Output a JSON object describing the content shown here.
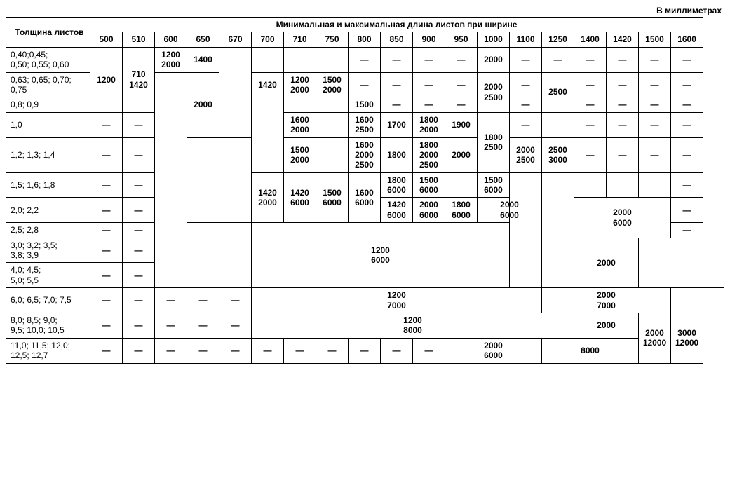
{
  "unit_label": "В миллиметрах",
  "header": {
    "row_title": "Толщина листов",
    "spanning_title": "Минимальная и максимальная длина листов при ширине",
    "columns": [
      "500",
      "510",
      "600",
      "650",
      "670",
      "700",
      "710",
      "750",
      "800",
      "850",
      "900",
      "950",
      "1000",
      "1100",
      "1250",
      "1400",
      "1420",
      "1500",
      "1600"
    ]
  },
  "dash": "—",
  "row_labels": {
    "r1": "0,40;0,45;\n0,50; 0,55; 0,60",
    "r2": "0,63; 0,65; 0,70;\n0,75",
    "r3": "0,8; 0,9",
    "r4": "1,0",
    "r5": "1,2; 1,3; 1,4",
    "r6": "1,5; 1,6; 1,8",
    "r7": "2,0; 2,2",
    "r8": "2,5; 2,8",
    "r9": "3,0; 3,2; 3,5;\n3,8; 3,9",
    "r10": "4,0; 4,5;\n5,0; 5,5",
    "r11": "6,0; 6,5; 7,0; 7,5",
    "r12": "8,0; 8,5; 9,0;\n9,5; 10,0; 10,5",
    "r13": "11,0; 11,5; 12,0;\n12,5; 12,7"
  },
  "cells": {
    "c500_r1to3": "1200",
    "c510_r1to3": "710\n1420",
    "c600_r1": "1200\n2000",
    "c650_r1": "1400",
    "c650_r2to4": "2000",
    "c700_r2": "1420",
    "c710_r2": "1200\n2000",
    "c750_r2": "1500\n2000",
    "c800_r3": "1500",
    "c1000_r1": "2000",
    "c1000_r2to3": "2000\n2500",
    "c1250_r2to3": "2500",
    "c710_r4": "1600\n2000",
    "c800_r4": "1600\n2500",
    "c850_r4": "1700",
    "c900_r4": "1800\n2000",
    "c950_r4": "1900",
    "c1000_r4to5": "1800\n2500",
    "c710_r5": "1500\n2000",
    "c800_r5": "1600\n2000\n2500",
    "c850_r5": "1800",
    "c900_r5": "1800\n2000\n2500",
    "c950_r5": "2000",
    "c1100_r5": "2000\n2500",
    "c1250_r5": "2500\n3000",
    "c650_r6to7": "1420\n2000",
    "c700_r7": "1420\n6000",
    "c710_r6to7": "1420\n6000",
    "c750_r6to7": "1500\n6000",
    "c800_r6to7": "1600\n6000",
    "c850_r6": "1800\n6000",
    "c900_r6": "1500\n6000",
    "c1000_r6": "1500\n6000",
    "c850_r7": "2000\n6000",
    "c900_r7": "1800\n6000",
    "c1000_r7": "2000\n6000",
    "c1400_r7to8": "2000\n6000",
    "c600_r9to10": "2000",
    "c800_r9to10": "1200\n6000",
    "c1000_r11": "1200\n7000",
    "c1400_r11": "2000\n7000",
    "c800_r12": "1200\n8000",
    "c1400_r12": "2000",
    "c1500_r12to13": "2000\n12000",
    "c1600_r12to13": "3000\n12000",
    "c1000_r13": "2000\n6000",
    "c1400_r13": "8000"
  }
}
